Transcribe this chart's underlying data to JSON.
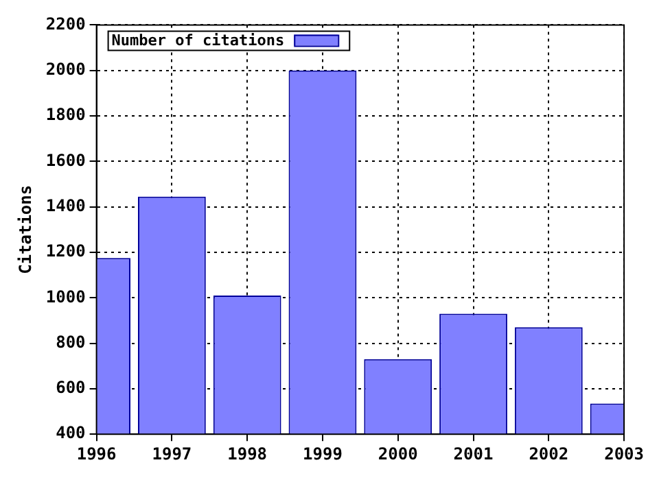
{
  "chart_data": {
    "type": "bar",
    "ylabel": "Citations",
    "x": [
      1996,
      1997,
      1998,
      1999,
      2000,
      2001,
      2002,
      2003
    ],
    "series": [
      {
        "name": "Number of citations",
        "color": "#8080ff",
        "values": [
          1175,
          1445,
          1010,
          2000,
          730,
          930,
          870,
          535
        ]
      }
    ],
    "xlim": [
      1996,
      2003
    ],
    "xticks": [
      1996,
      1997,
      1998,
      1999,
      2000,
      2001,
      2002,
      2003
    ],
    "ylim": [
      400,
      2200
    ],
    "yticks": [
      400,
      600,
      800,
      1000,
      1200,
      1400,
      1600,
      1800,
      2000,
      2200
    ],
    "grid": true,
    "legend": "top left"
  }
}
